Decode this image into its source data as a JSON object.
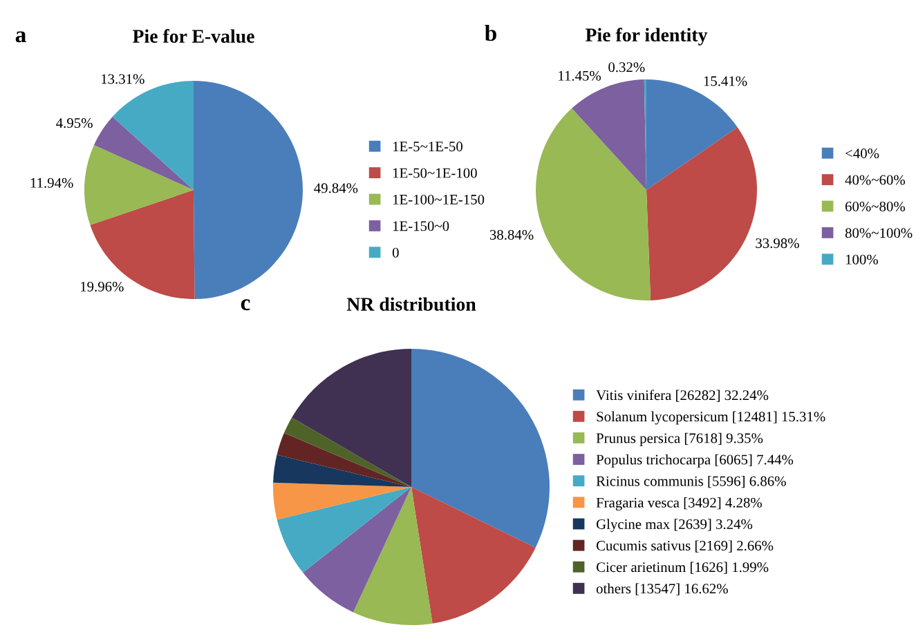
{
  "chart_data": [
    {
      "type": "pie",
      "title": "Pie for E-value",
      "annotations": [
        "a"
      ],
      "categories": [
        "1E-5~1E-50",
        "1E-50~1E-100",
        "1E-100~1E-150",
        "1E-150~0",
        "0"
      ],
      "values": [
        49.84,
        19.96,
        11.94,
        4.95,
        13.31
      ],
      "colors": [
        "#4a7ebb",
        "#be4b48",
        "#98b954",
        "#7d60a0",
        "#46aac5"
      ],
      "value_labels": [
        "49.84%",
        "19.96%",
        "11.94%",
        "4.95%",
        "13.31%"
      ],
      "legend": "right"
    },
    {
      "type": "pie",
      "title": "Pie for identity",
      "annotations": [
        "b"
      ],
      "categories": [
        "<40%",
        "40%~60%",
        "60%~80%",
        "80%~100%",
        "100%"
      ],
      "values": [
        15.41,
        33.98,
        38.84,
        11.45,
        0.32
      ],
      "colors": [
        "#4a7ebb",
        "#be4b48",
        "#98b954",
        "#7d60a0",
        "#46aac5"
      ],
      "value_labels": [
        "15.41%",
        "33.98%",
        "38.84%",
        "11.45%",
        "0.32%"
      ],
      "legend": "right"
    },
    {
      "type": "pie",
      "title": "NR distribution",
      "annotations": [
        "c"
      ],
      "categories": [
        "Vitis vinifera [26282] 32.24%",
        "Solanum lycopersicum [12481] 15.31%",
        "Prunus persica [7618] 9.35%",
        "Populus trichocarpa [6065] 7.44%",
        "Ricinus communis [5596] 6.86%",
        "Fragaria vesca [3492] 4.28%",
        "Glycine max [2639] 3.24%",
        "Cucumis sativus [2169] 2.66%",
        "Cicer arietinum [1626] 1.99%",
        "others [13547] 16.62%"
      ],
      "values": [
        32.24,
        15.31,
        9.35,
        7.44,
        6.86,
        4.28,
        3.24,
        2.66,
        1.99,
        16.62
      ],
      "colors": [
        "#4a7ebb",
        "#be4b48",
        "#98b954",
        "#7d60a0",
        "#46aac5",
        "#f79646",
        "#17375e",
        "#632523",
        "#4f6228",
        "#403152"
      ],
      "legend": "right"
    }
  ]
}
